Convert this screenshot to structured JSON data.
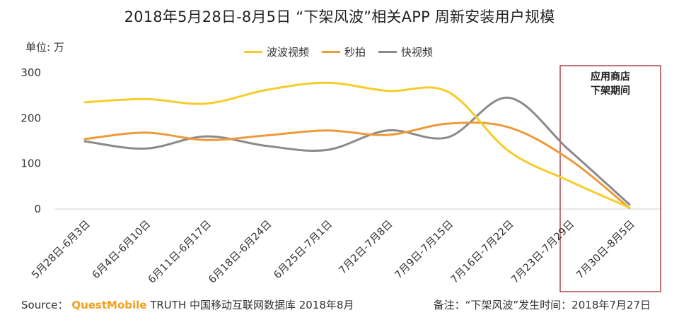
{
  "chart_data": {
    "type": "line",
    "title": "2018年5月28日-8月5日 “下架风波”相关APP 周新安装用户规模",
    "ylabel": "单位: 万",
    "ylim": [
      0,
      300
    ],
    "yticks": [
      0,
      100,
      200,
      300
    ],
    "categories": [
      "5月28日-6月3日",
      "6月4日-6月10日",
      "6月11日-6月17日",
      "6月18日-6月24日",
      "6月25日-7月1日",
      "7月2日-7月8日",
      "7月9日-7月15日",
      "7月16日-7月22日",
      "7月23日-7月29日",
      "7月30日-8月5日"
    ],
    "series": [
      {
        "name": "波波视频",
        "color": "#f5cd2a",
        "values": [
          235,
          242,
          232,
          262,
          278,
          260,
          258,
          128,
          62,
          3
        ]
      },
      {
        "name": "秒拍",
        "color": "#ee9a3a",
        "values": [
          154,
          168,
          152,
          162,
          173,
          163,
          188,
          180,
          110,
          2
        ]
      },
      {
        "name": "快视频",
        "color": "#8a8a8a",
        "values": [
          149,
          133,
          160,
          139,
          130,
          173,
          158,
          245,
          130,
          10
        ]
      }
    ],
    "annotation": {
      "line1": "应用商店",
      "line2": "下架期间",
      "color": "#9b2c2c"
    }
  },
  "footer": {
    "source_prefix": "Source：",
    "brand": "QuestMobile",
    "source_rest": " TRUTH 中国移动互联网数据库 2018年8月",
    "note": "备注：“下架风波”发生时间：2018年7月27日"
  }
}
